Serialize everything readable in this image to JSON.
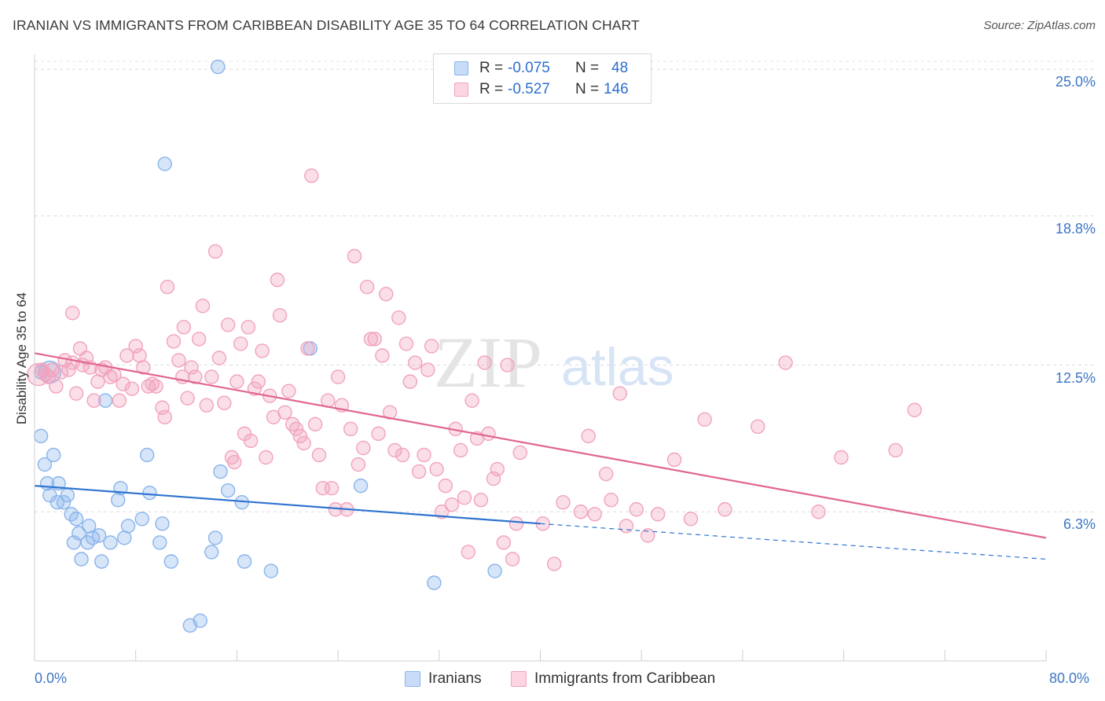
{
  "title": "IRANIAN VS IMMIGRANTS FROM CARIBBEAN DISABILITY AGE 35 TO 64 CORRELATION CHART",
  "source": "Source: ZipAtlas.com",
  "watermark": "ZIPatlas",
  "legend_top": {
    "rows": [
      {
        "r_label": "R =",
        "r_value": "-0.075",
        "n_label": "N =",
        "n_value": "48",
        "color": "#8ab4ec"
      },
      {
        "r_label": "R =",
        "r_value": "-0.527",
        "n_label": "N =",
        "n_value": "146",
        "color": "#f2a2bd"
      }
    ]
  },
  "legend_bottom": [
    {
      "label": "Iranians",
      "color": "#8ab4ec"
    },
    {
      "label": "Immigrants from Caribbean",
      "color": "#f2a2bd"
    }
  ],
  "chart_data": {
    "type": "scatter",
    "xlabel": "",
    "ylabel": "Disability Age 35 to 64",
    "x_tick_labels": [
      "0.0%",
      "80.0%"
    ],
    "y_tick_labels": [
      "25.0%",
      "18.8%",
      "12.5%",
      "6.3%"
    ],
    "y_ticks": [
      25.0,
      18.8,
      12.5,
      6.3
    ],
    "xlim": [
      0,
      80
    ],
    "ylim": [
      0,
      25.6
    ],
    "grid": true,
    "legend_placement": "top-center",
    "series": [
      {
        "name": "Iranians",
        "color": "#8ab4ec",
        "trend_color": "#2f74d0",
        "trend": {
          "x0": 0,
          "y0": 7.4,
          "x1": 40,
          "y1": 5.8,
          "dashed_to_x": 80,
          "dashed_to_y": 4.3
        },
        "points": [
          [
            0.5,
            12.2
          ],
          [
            0.5,
            9.5
          ],
          [
            0.8,
            8.3
          ],
          [
            1.0,
            7.5
          ],
          [
            1.2,
            7.0
          ],
          [
            1.5,
            8.7
          ],
          [
            1.8,
            6.7
          ],
          [
            1.9,
            7.5
          ],
          [
            2.3,
            6.7
          ],
          [
            2.6,
            7.0
          ],
          [
            2.9,
            6.2
          ],
          [
            3.1,
            5.0
          ],
          [
            3.3,
            6.0
          ],
          [
            3.5,
            5.4
          ],
          [
            3.7,
            4.3
          ],
          [
            4.2,
            5.0
          ],
          [
            4.3,
            5.7
          ],
          [
            4.6,
            5.2
          ],
          [
            5.1,
            5.3
          ],
          [
            5.3,
            4.2
          ],
          [
            5.6,
            11.0
          ],
          [
            6.0,
            5.0
          ],
          [
            6.6,
            6.8
          ],
          [
            6.8,
            7.3
          ],
          [
            7.1,
            5.2
          ],
          [
            7.4,
            5.7
          ],
          [
            8.5,
            6.0
          ],
          [
            8.9,
            8.7
          ],
          [
            9.1,
            7.1
          ],
          [
            9.9,
            5.0
          ],
          [
            10.1,
            5.8
          ],
          [
            10.3,
            21.0
          ],
          [
            10.8,
            4.2
          ],
          [
            12.3,
            1.5
          ],
          [
            13.1,
            1.7
          ],
          [
            14.0,
            4.6
          ],
          [
            14.3,
            5.2
          ],
          [
            14.5,
            25.1
          ],
          [
            14.7,
            8.0
          ],
          [
            15.3,
            7.2
          ],
          [
            16.4,
            6.7
          ],
          [
            16.6,
            4.2
          ],
          [
            18.7,
            3.8
          ],
          [
            21.8,
            13.2
          ],
          [
            25.8,
            7.4
          ],
          [
            31.6,
            3.3
          ],
          [
            36.4,
            3.8
          ],
          [
            1.2,
            12.2
          ]
        ]
      },
      {
        "name": "Immigrants from Caribbean",
        "color": "#f2a2bd",
        "trend_color": "#e06592",
        "trend": {
          "x0": 0,
          "y0": 13.0,
          "x1": 80,
          "y1": 5.2
        },
        "points": [
          [
            0.3,
            12.1
          ],
          [
            0.6,
            12.3
          ],
          [
            0.9,
            12.1
          ],
          [
            1.1,
            12.0
          ],
          [
            1.4,
            12.3
          ],
          [
            1.7,
            11.6
          ],
          [
            2.1,
            12.2
          ],
          [
            2.4,
            12.7
          ],
          [
            2.7,
            12.3
          ],
          [
            3.0,
            12.6
          ],
          [
            3.0,
            14.7
          ],
          [
            3.3,
            11.3
          ],
          [
            3.6,
            13.2
          ],
          [
            3.8,
            12.5
          ],
          [
            4.1,
            12.8
          ],
          [
            4.4,
            12.4
          ],
          [
            4.7,
            11.0
          ],
          [
            5.0,
            11.8
          ],
          [
            5.3,
            12.3
          ],
          [
            5.6,
            12.4
          ],
          [
            6.0,
            12.0
          ],
          [
            6.3,
            12.1
          ],
          [
            6.7,
            11.0
          ],
          [
            7.0,
            11.7
          ],
          [
            7.3,
            12.9
          ],
          [
            7.7,
            11.5
          ],
          [
            8.0,
            13.3
          ],
          [
            8.3,
            12.9
          ],
          [
            8.6,
            12.4
          ],
          [
            9.0,
            11.6
          ],
          [
            9.3,
            11.7
          ],
          [
            9.6,
            11.6
          ],
          [
            10.1,
            10.7
          ],
          [
            10.3,
            10.3
          ],
          [
            10.5,
            15.8
          ],
          [
            11.0,
            13.5
          ],
          [
            11.4,
            12.7
          ],
          [
            11.7,
            12.0
          ],
          [
            11.8,
            14.1
          ],
          [
            12.1,
            11.1
          ],
          [
            12.4,
            12.4
          ],
          [
            12.7,
            12.0
          ],
          [
            13.0,
            13.6
          ],
          [
            13.3,
            15.0
          ],
          [
            13.6,
            10.8
          ],
          [
            14.0,
            12.0
          ],
          [
            14.3,
            17.3
          ],
          [
            14.6,
            12.8
          ],
          [
            15.0,
            10.9
          ],
          [
            15.3,
            14.2
          ],
          [
            15.6,
            8.6
          ],
          [
            15.8,
            8.4
          ],
          [
            16.0,
            11.8
          ],
          [
            16.3,
            13.4
          ],
          [
            16.6,
            9.6
          ],
          [
            16.9,
            14.1
          ],
          [
            17.1,
            9.3
          ],
          [
            17.4,
            11.5
          ],
          [
            17.7,
            11.8
          ],
          [
            18.0,
            13.1
          ],
          [
            18.3,
            8.6
          ],
          [
            18.6,
            11.2
          ],
          [
            18.9,
            10.3
          ],
          [
            19.2,
            16.1
          ],
          [
            19.4,
            14.6
          ],
          [
            19.8,
            10.5
          ],
          [
            20.1,
            11.4
          ],
          [
            20.4,
            10.0
          ],
          [
            20.7,
            9.8
          ],
          [
            21.0,
            9.5
          ],
          [
            21.3,
            9.2
          ],
          [
            21.6,
            13.2
          ],
          [
            21.9,
            20.5
          ],
          [
            22.2,
            10.0
          ],
          [
            22.5,
            8.7
          ],
          [
            22.8,
            7.3
          ],
          [
            23.2,
            11.0
          ],
          [
            23.5,
            7.3
          ],
          [
            23.8,
            6.4
          ],
          [
            24.0,
            12.0
          ],
          [
            24.3,
            10.8
          ],
          [
            24.7,
            6.4
          ],
          [
            25.0,
            9.8
          ],
          [
            25.3,
            17.1
          ],
          [
            25.6,
            8.3
          ],
          [
            26.0,
            9.0
          ],
          [
            26.3,
            15.8
          ],
          [
            26.6,
            13.6
          ],
          [
            26.9,
            13.6
          ],
          [
            27.2,
            9.6
          ],
          [
            27.5,
            12.9
          ],
          [
            27.8,
            15.5
          ],
          [
            28.1,
            10.5
          ],
          [
            28.5,
            8.9
          ],
          [
            28.8,
            14.5
          ],
          [
            29.1,
            8.7
          ],
          [
            29.4,
            13.4
          ],
          [
            29.7,
            11.8
          ],
          [
            30.1,
            12.6
          ],
          [
            30.4,
            8.0
          ],
          [
            30.8,
            8.7
          ],
          [
            31.1,
            12.3
          ],
          [
            31.4,
            13.3
          ],
          [
            31.8,
            8.1
          ],
          [
            32.2,
            6.3
          ],
          [
            32.5,
            7.4
          ],
          [
            33.0,
            6.6
          ],
          [
            33.3,
            9.8
          ],
          [
            33.7,
            8.9
          ],
          [
            34.0,
            6.9
          ],
          [
            34.3,
            4.6
          ],
          [
            34.6,
            11.0
          ],
          [
            35.0,
            9.4
          ],
          [
            35.3,
            6.8
          ],
          [
            35.6,
            12.6
          ],
          [
            35.9,
            9.6
          ],
          [
            36.3,
            7.7
          ],
          [
            36.6,
            8.1
          ],
          [
            37.1,
            5.0
          ],
          [
            37.4,
            12.5
          ],
          [
            37.8,
            4.3
          ],
          [
            38.1,
            5.8
          ],
          [
            38.4,
            8.8
          ],
          [
            40.2,
            5.8
          ],
          [
            41.1,
            4.1
          ],
          [
            41.8,
            6.7
          ],
          [
            43.2,
            6.3
          ],
          [
            43.8,
            9.5
          ],
          [
            44.3,
            6.2
          ],
          [
            45.2,
            7.9
          ],
          [
            45.6,
            6.8
          ],
          [
            46.3,
            11.3
          ],
          [
            46.8,
            5.7
          ],
          [
            47.6,
            6.4
          ],
          [
            48.5,
            5.3
          ],
          [
            49.3,
            6.2
          ],
          [
            50.6,
            8.5
          ],
          [
            51.9,
            6.0
          ],
          [
            53.0,
            10.2
          ],
          [
            54.6,
            6.4
          ],
          [
            57.2,
            9.9
          ],
          [
            59.4,
            12.6
          ],
          [
            63.8,
            8.6
          ],
          [
            68.1,
            8.9
          ],
          [
            69.6,
            10.6
          ],
          [
            62.0,
            6.3
          ]
        ]
      }
    ]
  }
}
